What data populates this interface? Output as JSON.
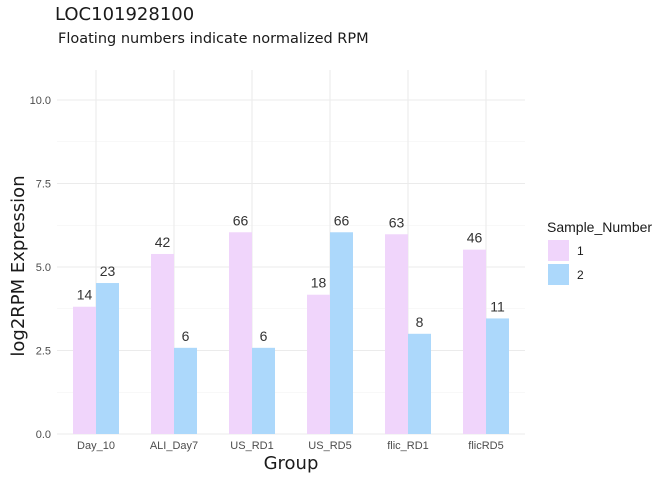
{
  "chart_data": {
    "type": "bar",
    "title": "LOC101928100",
    "subtitle": "Floating numbers indicate normalized RPM",
    "xlabel": "Group",
    "ylabel": "log2RPM Expression",
    "ylim": [
      0,
      10.9
    ],
    "yticks": [
      "0.0",
      "2.5",
      "5.0",
      "7.5",
      "10.0"
    ],
    "categories": [
      "Day_10",
      "ALI_Day7",
      "US_RD1",
      "US_RD5",
      "flic_RD1",
      "flicRD5"
    ],
    "series": [
      {
        "name": "1",
        "values": [
          3.81,
          5.39,
          6.04,
          4.17,
          5.98,
          5.52
        ],
        "labels": [
          "14",
          "42",
          "66",
          "18",
          "63",
          "46"
        ],
        "color": "#f0d5fb"
      },
      {
        "name": "2",
        "values": [
          4.52,
          2.58,
          2.58,
          6.04,
          3.0,
          3.46
        ],
        "labels": [
          "23",
          "6",
          "6",
          "66",
          "8",
          "11"
        ],
        "color": "#acd8fb"
      }
    ],
    "legend": {
      "title": "Sample_Number",
      "position": "right"
    },
    "grid": true
  }
}
